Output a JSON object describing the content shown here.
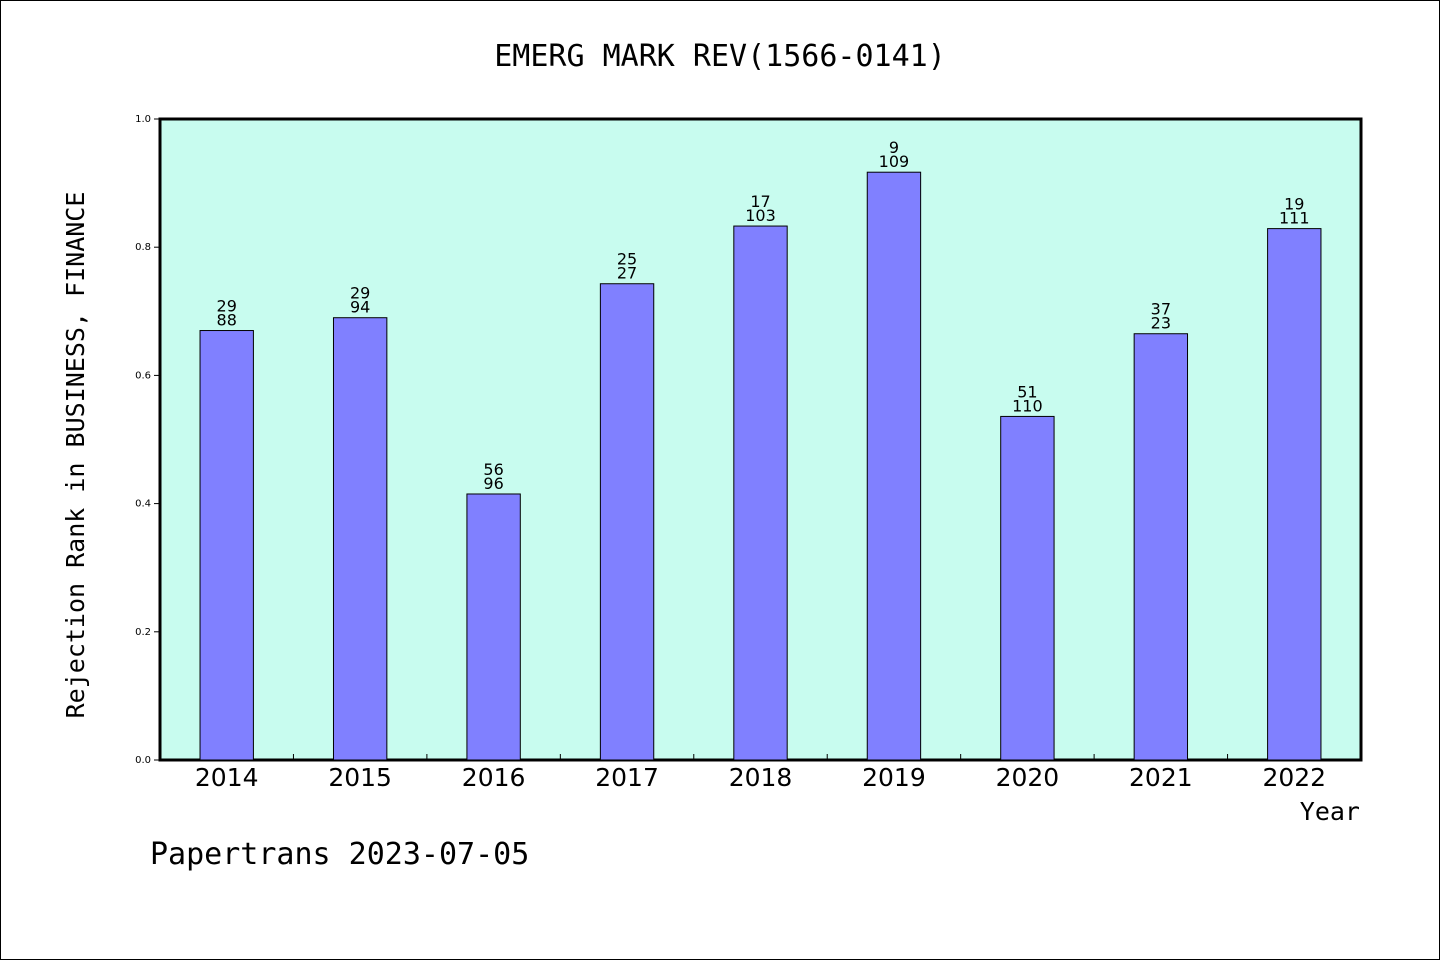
{
  "title": "EMERG MARK REV(1566-0141)",
  "footer": "Papertrans 2023-07-05",
  "colors": {
    "plot_background": "#c8fcef",
    "bar_fill": "#8080ff",
    "bar_stroke": "#000000",
    "axis": "#000000"
  },
  "chart_data": {
    "type": "bar",
    "title": "EMERG MARK REV(1566-0141)",
    "xlabel": "Year",
    "ylabel": "Rejection Rank in BUSINESS, FINANCE",
    "ylim": [
      0,
      1.0
    ],
    "yticks": [
      "0.0",
      "0.2",
      "0.4",
      "0.6",
      "0.8",
      "1.0"
    ],
    "grid": false,
    "categories": [
      "2014",
      "2015",
      "2016",
      "2017",
      "2018",
      "2019",
      "2020",
      "2021",
      "2022"
    ],
    "values": [
      0.67,
      0.69,
      0.415,
      0.743,
      0.833,
      0.917,
      0.536,
      0.665,
      0.829
    ],
    "labels_top": [
      "29",
      "29",
      "56",
      "25",
      "17",
      "9",
      "51",
      "37",
      "19"
    ],
    "labels_bottom": [
      "88",
      "94",
      "96",
      "27",
      "103",
      "109",
      "110",
      "23",
      "111"
    ]
  }
}
